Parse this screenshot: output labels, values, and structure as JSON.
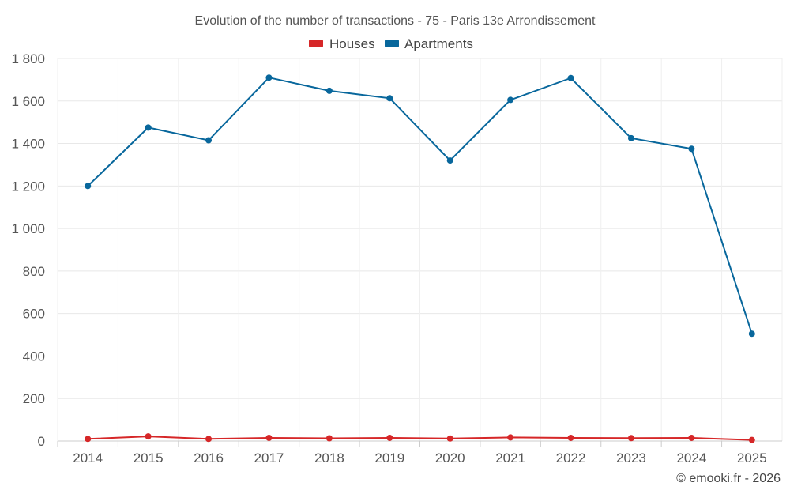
{
  "chart_data": {
    "type": "line",
    "title": "Evolution of the number of transactions - 75 - Paris 13e Arrondissement",
    "categories": [
      "2014",
      "2015",
      "2016",
      "2017",
      "2018",
      "2019",
      "2020",
      "2021",
      "2022",
      "2023",
      "2024",
      "2025"
    ],
    "series": [
      {
        "name": "Houses",
        "color": "#d62728",
        "values": [
          10,
          22,
          10,
          15,
          13,
          15,
          12,
          17,
          15,
          14,
          15,
          5
        ]
      },
      {
        "name": "Apartments",
        "color": "#08679c",
        "values": [
          1200,
          1475,
          1415,
          1710,
          1648,
          1613,
          1320,
          1605,
          1708,
          1425,
          1375,
          505
        ]
      }
    ],
    "ylim": [
      0,
      1800
    ],
    "yticks": [
      0,
      200,
      400,
      600,
      800,
      1000,
      1200,
      1400,
      1600,
      1800
    ],
    "ytick_labels": [
      "0",
      "200",
      "400",
      "600",
      "800",
      "1 000",
      "1 200",
      "1 400",
      "1 600",
      "1 800"
    ],
    "xlabel": "",
    "ylabel": "",
    "grid": true,
    "legend_position": "top-center"
  },
  "credit": "© emooki.fr - 2026"
}
